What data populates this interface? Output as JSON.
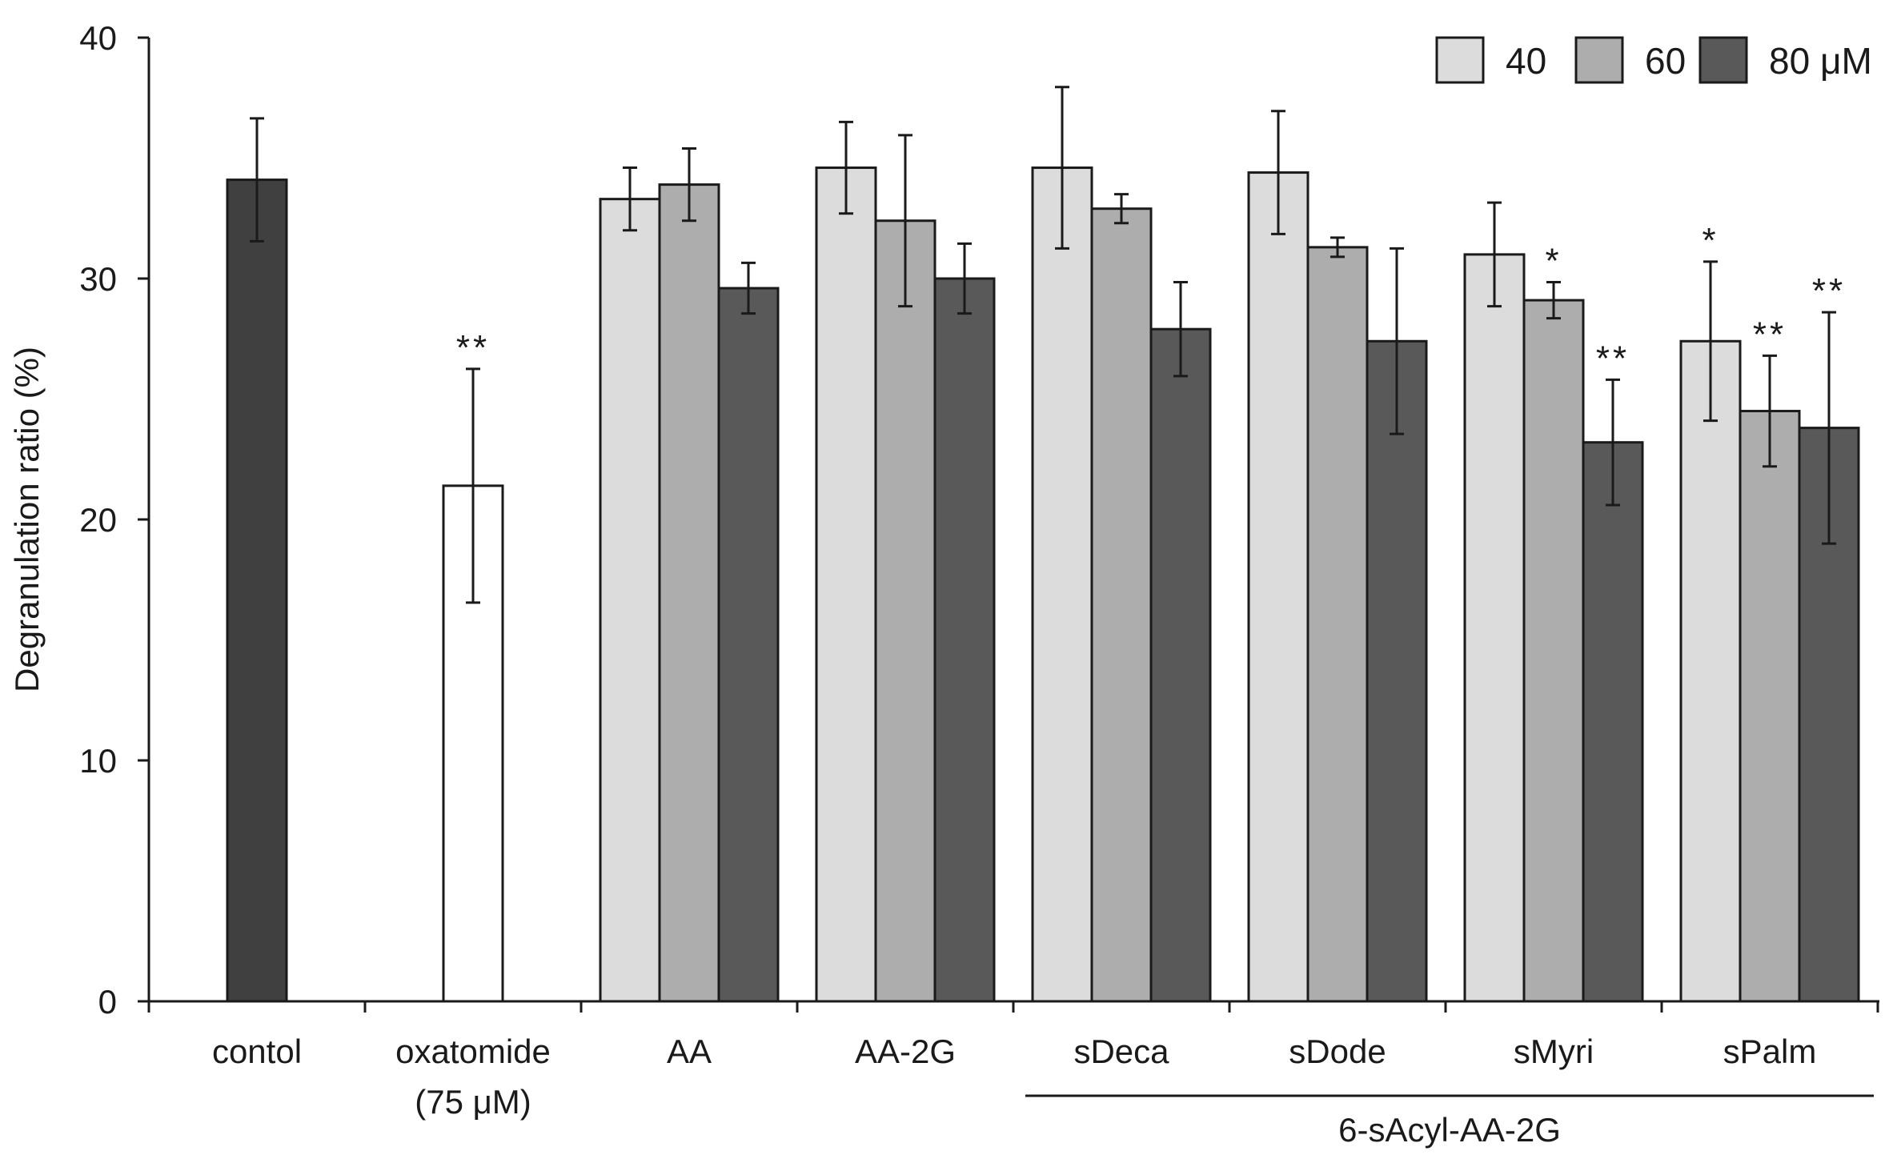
{
  "chart_data": {
    "type": "bar",
    "title": "",
    "xlabel": "",
    "ylabel": "Degranulation ratio (%)",
    "ylim": [
      0,
      40
    ],
    "yticks": [
      0,
      10,
      20,
      30,
      40
    ],
    "grid": false,
    "legend": {
      "position": "top-right",
      "entries": [
        {
          "label": "40",
          "color": "#dcdcdc"
        },
        {
          "label": "60",
          "color": "#adadad"
        },
        {
          "label": "80 μM",
          "color": "#595959"
        }
      ]
    },
    "groups": [
      {
        "label": "contol",
        "sublabel": "",
        "bars": [
          {
            "series": "control",
            "value": 34.1,
            "error": 2.55,
            "color": "#404040",
            "sig": ""
          }
        ]
      },
      {
        "label": "oxatomide",
        "sublabel": "(75 μM)",
        "bars": [
          {
            "series": "oxatomide",
            "value": 21.4,
            "error": 4.85,
            "color": "#ffffff",
            "sig": "**"
          }
        ]
      },
      {
        "label": "AA",
        "sublabel": "",
        "bars": [
          {
            "series": "40",
            "value": 33.3,
            "error": 1.3,
            "color": "#dcdcdc",
            "sig": ""
          },
          {
            "series": "60",
            "value": 33.9,
            "error": 1.5,
            "color": "#adadad",
            "sig": ""
          },
          {
            "series": "80",
            "value": 29.6,
            "error": 1.05,
            "color": "#595959",
            "sig": ""
          }
        ]
      },
      {
        "label": "AA-2G",
        "sublabel": "",
        "bars": [
          {
            "series": "40",
            "value": 34.6,
            "error": 1.9,
            "color": "#dcdcdc",
            "sig": ""
          },
          {
            "series": "60",
            "value": 32.4,
            "error": 3.55,
            "color": "#adadad",
            "sig": ""
          },
          {
            "series": "80",
            "value": 30.0,
            "error": 1.45,
            "color": "#595959",
            "sig": ""
          }
        ]
      },
      {
        "label": "sDeca",
        "sublabel": "",
        "bars": [
          {
            "series": "40",
            "value": 34.6,
            "error": 3.35,
            "color": "#dcdcdc",
            "sig": ""
          },
          {
            "series": "60",
            "value": 32.9,
            "error": 0.6,
            "color": "#adadad",
            "sig": ""
          },
          {
            "series": "80",
            "value": 27.9,
            "error": 1.95,
            "color": "#595959",
            "sig": ""
          }
        ]
      },
      {
        "label": "sDode",
        "sublabel": "",
        "bars": [
          {
            "series": "40",
            "value": 34.4,
            "error": 2.55,
            "color": "#dcdcdc",
            "sig": ""
          },
          {
            "series": "60",
            "value": 31.3,
            "error": 0.4,
            "color": "#adadad",
            "sig": ""
          },
          {
            "series": "80",
            "value": 27.4,
            "error": 3.85,
            "color": "#595959",
            "sig": ""
          }
        ]
      },
      {
        "label": "sMyri",
        "sublabel": "",
        "bars": [
          {
            "series": "40",
            "value": 31.0,
            "error": 2.15,
            "color": "#dcdcdc",
            "sig": ""
          },
          {
            "series": "60",
            "value": 29.1,
            "error": 0.75,
            "color": "#adadad",
            "sig": "*"
          },
          {
            "series": "80",
            "value": 23.2,
            "error": 2.6,
            "color": "#595959",
            "sig": "**"
          }
        ]
      },
      {
        "label": "sPalm",
        "sublabel": "",
        "bars": [
          {
            "series": "40",
            "value": 27.4,
            "error": 3.3,
            "color": "#dcdcdc",
            "sig": "*"
          },
          {
            "series": "60",
            "value": 24.5,
            "error": 2.3,
            "color": "#adadad",
            "sig": "**"
          },
          {
            "series": "80",
            "value": 23.8,
            "error": 4.8,
            "color": "#595959",
            "sig": "**"
          }
        ]
      }
    ],
    "bracket": {
      "label": "6-sAcyl-AA-2G",
      "from_group": 4,
      "to_group": 7
    }
  }
}
